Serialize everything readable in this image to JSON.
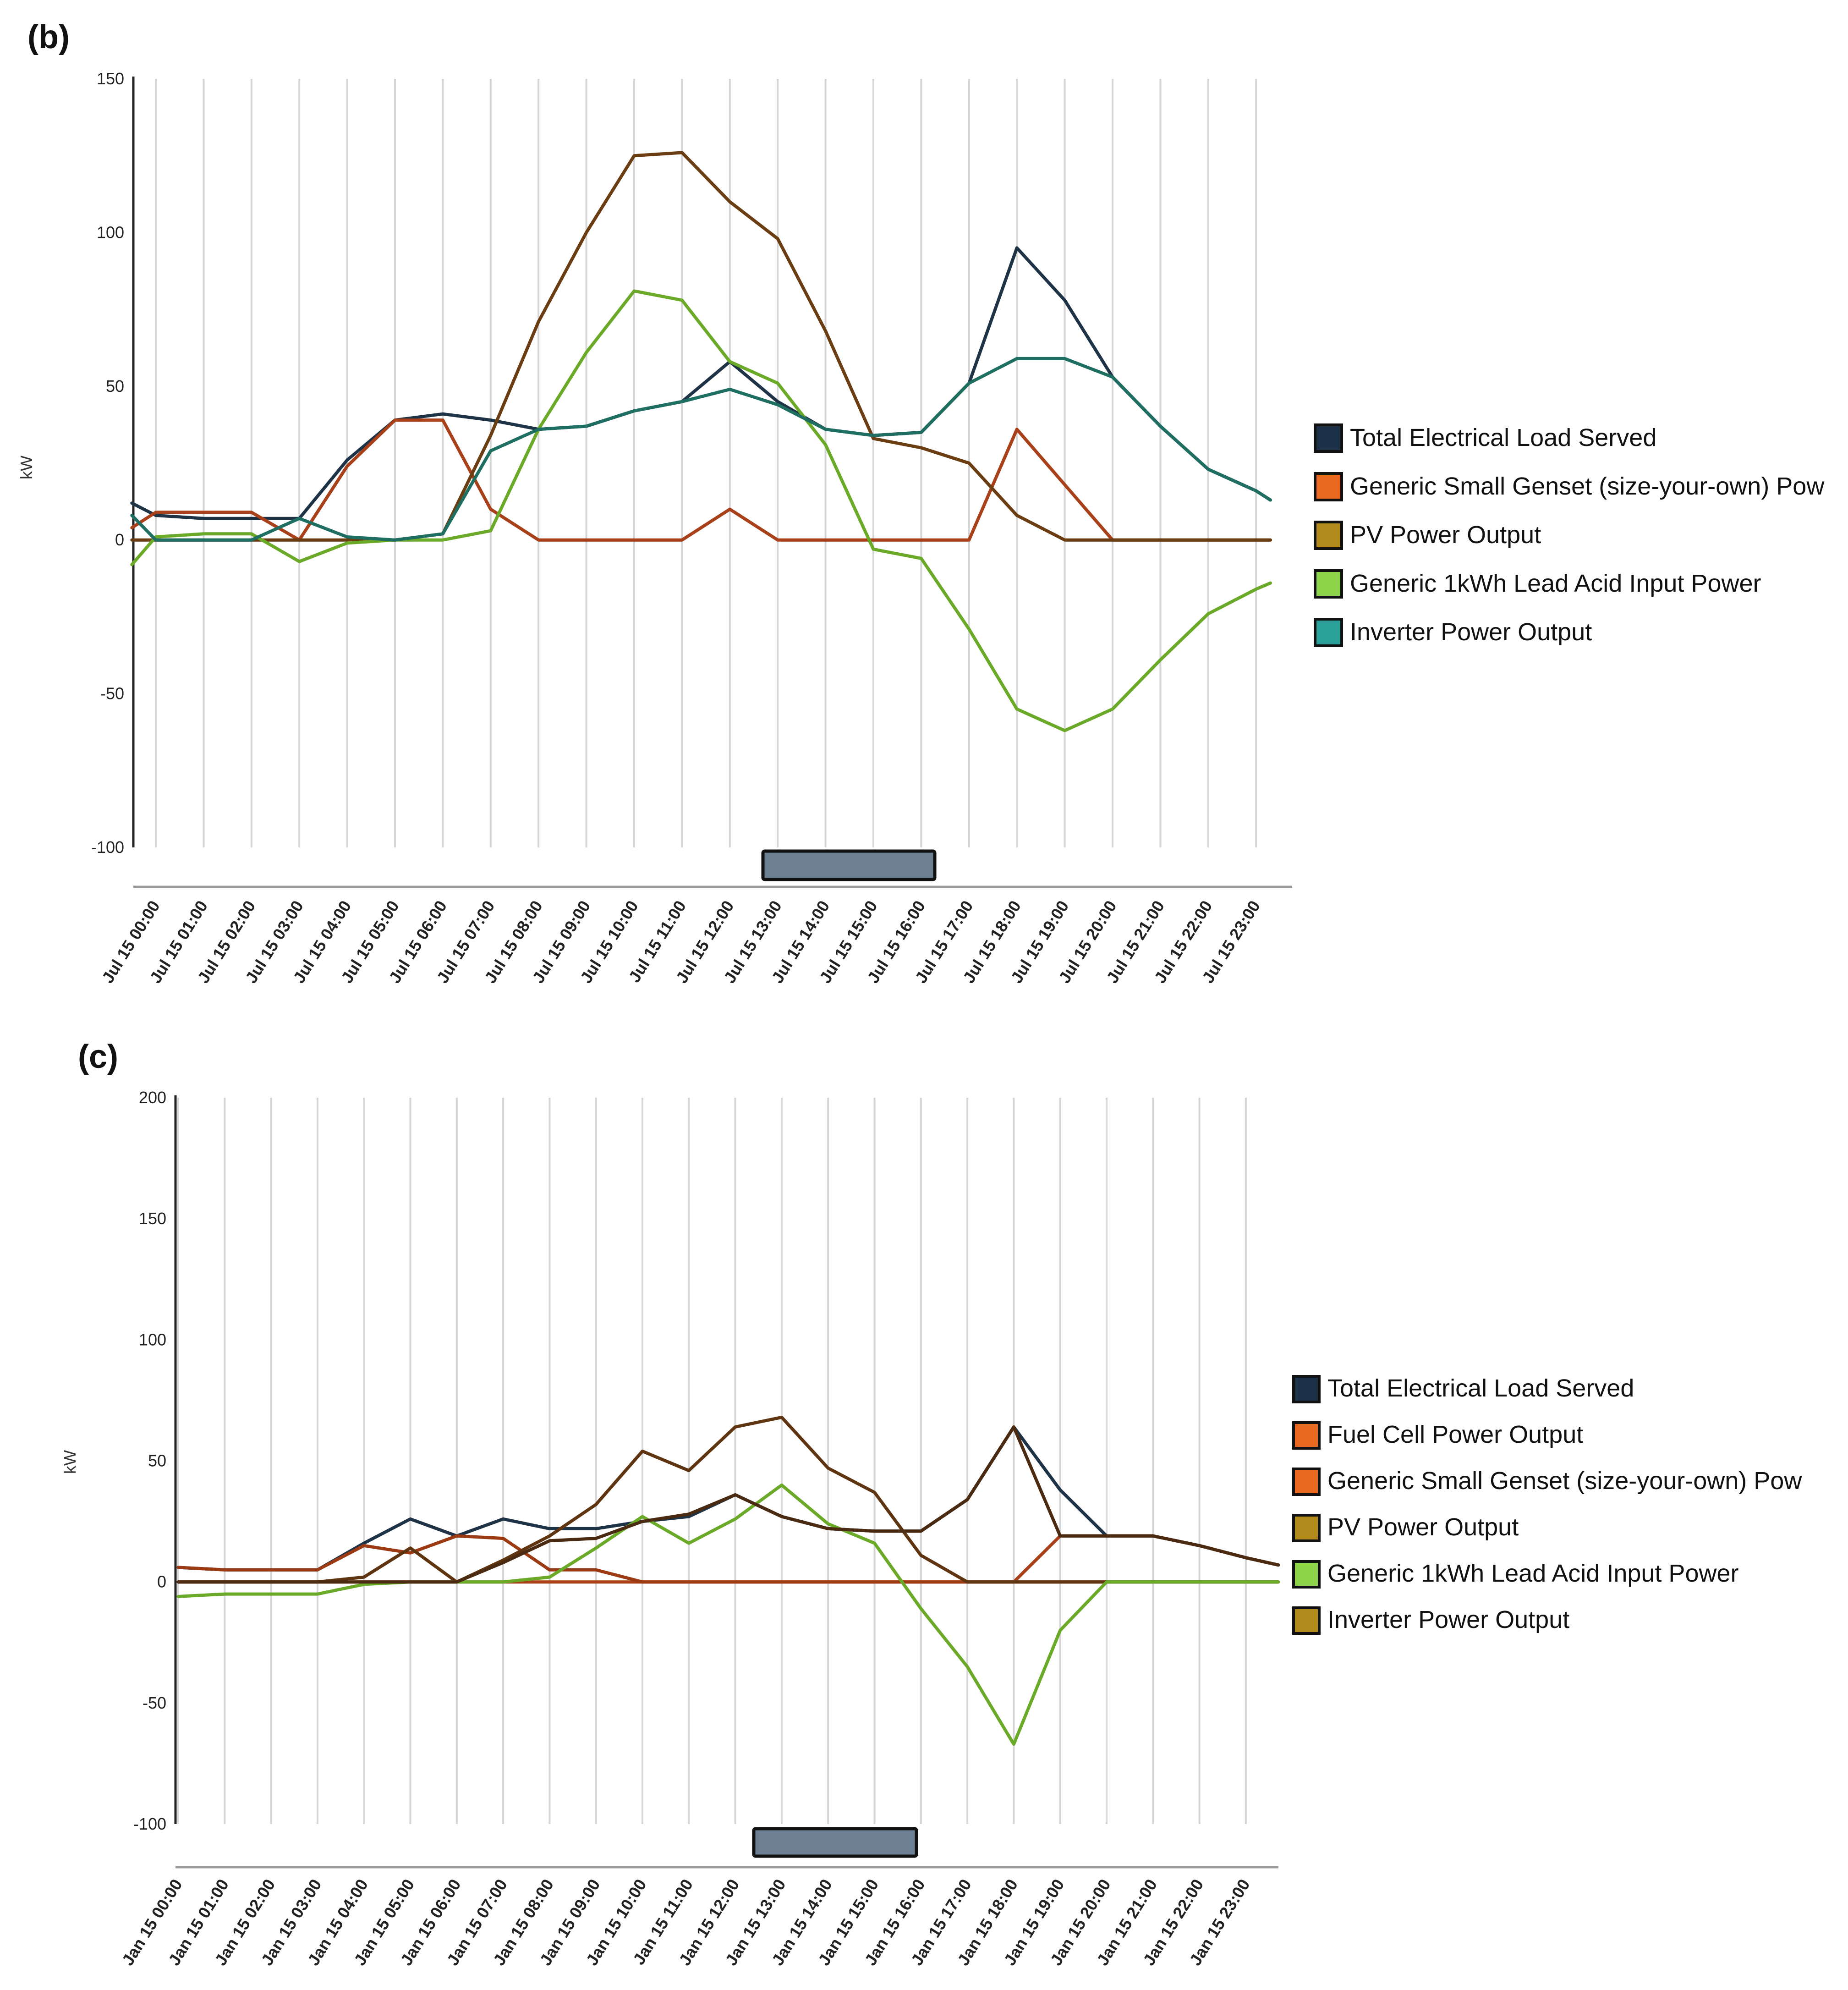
{
  "chart_data": [
    {
      "type": "line",
      "panel_label": "(b)",
      "title": "",
      "xlabel": "",
      "ylabel": "kW",
      "ylim": [
        -100,
        150
      ],
      "yticks": [
        150,
        100,
        50,
        0,
        -50,
        -100
      ],
      "grid": "vertical",
      "legend_position": "right",
      "categories": [
        "Jul 15 00:00",
        "Jul 15 01:00",
        "Jul 15 02:00",
        "Jul 15 03:00",
        "Jul 15 04:00",
        "Jul 15 05:00",
        "Jul 15 06:00",
        "Jul 15 07:00",
        "Jul 15 08:00",
        "Jul 15 09:00",
        "Jul 15 10:00",
        "Jul 15 11:00",
        "Jul 15 12:00",
        "Jul 15 13:00",
        "Jul 15 14:00",
        "Jul 15 15:00",
        "Jul 15 16:00",
        "Jul 15 17:00",
        "Jul 15 18:00",
        "Jul 15 19:00",
        "Jul 15 20:00",
        "Jul 15 21:00",
        "Jul 15 22:00",
        "Jul 15 23:00"
      ],
      "series": [
        {
          "name": "Total Electrical Load Served",
          "color": "#1f3347",
          "swatch": "#1c3048",
          "x": [
            -0.5,
            0,
            1,
            2,
            3,
            4,
            5,
            6,
            7,
            8,
            9,
            10,
            11,
            12,
            13,
            14,
            15,
            16,
            17,
            18,
            19,
            20,
            21,
            22,
            23,
            23.3
          ],
          "values": [
            12,
            8,
            7,
            7,
            7,
            26,
            39,
            41,
            39,
            36,
            37,
            42,
            45,
            58,
            45,
            36,
            34,
            35,
            51,
            95,
            78,
            53,
            37,
            23,
            16,
            13
          ]
        },
        {
          "name": "Generic Small Genset (size-your-own) Pow",
          "color": "#a8401a",
          "swatch": "#e86820",
          "x": [
            -0.5,
            0,
            1,
            2,
            3,
            4,
            5,
            6,
            7,
            8,
            9,
            10,
            11,
            12,
            13,
            14,
            15,
            16,
            17,
            18,
            19,
            20,
            21,
            22,
            23,
            23.3
          ],
          "values": [
            4,
            9,
            9,
            9,
            0,
            24,
            39,
            39,
            10,
            0,
            0,
            0,
            0,
            10,
            0,
            0,
            0,
            0,
            0,
            36,
            18,
            0,
            0,
            0,
            0,
            0
          ]
        },
        {
          "name": "PV Power Output",
          "color": "#6b3d12",
          "swatch": "#b08a1a",
          "x": [
            -0.5,
            0,
            1,
            2,
            3,
            4,
            5,
            6,
            7,
            8,
            9,
            10,
            11,
            12,
            13,
            14,
            15,
            16,
            17,
            18,
            19,
            20,
            21,
            22,
            23,
            23.3
          ],
          "values": [
            0,
            0,
            0,
            0,
            0,
            0,
            0,
            2,
            34,
            71,
            100,
            125,
            126,
            110,
            98,
            68,
            33,
            30,
            25,
            8,
            0,
            0,
            0,
            0,
            0,
            0
          ]
        },
        {
          "name": "Generic 1kWh Lead Acid Input Power",
          "color": "#6aaa28",
          "swatch": "#8dd44a",
          "x": [
            -0.5,
            0,
            1,
            2,
            3,
            4,
            5,
            6,
            7,
            8,
            9,
            10,
            11,
            12,
            13,
            14,
            15,
            16,
            17,
            18,
            19,
            20,
            21,
            22,
            23,
            23.3
          ],
          "values": [
            -8,
            1,
            2,
            2,
            -7,
            -1,
            0,
            0,
            3,
            36,
            61,
            81,
            78,
            58,
            51,
            31,
            -3,
            -6,
            -29,
            -55,
            -62,
            -55,
            -39,
            -24,
            -16,
            -14
          ]
        },
        {
          "name": "Inverter Power Output",
          "color": "#1e6e62",
          "swatch": "#2aa198",
          "x": [
            -0.5,
            0,
            1,
            2,
            3,
            4,
            5,
            6,
            7,
            8,
            9,
            10,
            11,
            12,
            13,
            14,
            15,
            16,
            17,
            18,
            19,
            20,
            21,
            22,
            23,
            23.3
          ],
          "values": [
            8,
            0,
            0,
            0,
            7,
            1,
            0,
            2,
            29,
            36,
            37,
            42,
            45,
            49,
            44,
            36,
            34,
            35,
            51,
            59,
            59,
            53,
            37,
            23,
            16,
            13
          ]
        }
      ]
    },
    {
      "type": "line",
      "panel_label": "(c)",
      "title": "",
      "xlabel": "",
      "ylabel": "kW",
      "ylim": [
        -100,
        200
      ],
      "yticks": [
        200,
        150,
        100,
        50,
        0,
        -50,
        -100
      ],
      "grid": "vertical",
      "legend_position": "right",
      "categories": [
        "Jan 15 00:00",
        "Jan 15 01:00",
        "Jan 15 02:00",
        "Jan 15 03:00",
        "Jan 15 04:00",
        "Jan 15 05:00",
        "Jan 15 06:00",
        "Jan 15 07:00",
        "Jan 15 08:00",
        "Jan 15 09:00",
        "Jan 15 10:00",
        "Jan 15 11:00",
        "Jan 15 12:00",
        "Jan 15 13:00",
        "Jan 15 14:00",
        "Jan 15 15:00",
        "Jan 15 16:00",
        "Jan 15 17:00",
        "Jan 15 18:00",
        "Jan 15 19:00",
        "Jan 15 20:00",
        "Jan 15 21:00",
        "Jan 15 22:00",
        "Jan 15 23:00"
      ],
      "series": [
        {
          "name": "Total Electrical Load Served",
          "color": "#1f3347",
          "swatch": "#1c3048",
          "x": [
            0,
            1,
            2,
            3,
            4,
            5,
            6,
            7,
            8,
            9,
            10,
            11,
            12,
            13,
            14,
            15,
            16,
            17,
            18,
            19,
            20,
            21,
            22,
            23,
            23.7
          ],
          "values": [
            6,
            5,
            5,
            5,
            16,
            26,
            19,
            26,
            22,
            22,
            25,
            27,
            36,
            27,
            22,
            21,
            21,
            34,
            64,
            38,
            19,
            19,
            15,
            10,
            7
          ]
        },
        {
          "name": "Fuel Cell Power Output",
          "color": "#a8401a",
          "swatch": "#e86820",
          "x": [
            0,
            1,
            2,
            3,
            4,
            5,
            6,
            7,
            8,
            9,
            10,
            11,
            12,
            13,
            14,
            15,
            16,
            17,
            18,
            19,
            20,
            21,
            22,
            23,
            23.7
          ],
          "values": [
            0,
            0,
            0,
            0,
            0,
            0,
            0,
            0,
            0,
            0,
            0,
            0,
            0,
            0,
            0,
            0,
            0,
            0,
            0,
            19,
            19,
            19,
            15,
            10,
            7
          ]
        },
        {
          "name": "Generic Small Genset (size-your-own) Pow",
          "color": "#9c3a14",
          "swatch": "#e86820",
          "x": [
            0,
            1,
            2,
            3,
            4,
            5,
            6,
            7,
            8,
            9,
            10,
            11,
            12,
            13,
            14,
            15,
            16,
            17,
            18,
            19,
            20,
            21,
            22,
            23,
            23.7
          ],
          "values": [
            6,
            5,
            5,
            5,
            15,
            12,
            19,
            18,
            5,
            5,
            0,
            0,
            0,
            0,
            0,
            0,
            0,
            0,
            0,
            0,
            0,
            0,
            0,
            0,
            0
          ]
        },
        {
          "name": "PV Power Output",
          "color": "#5e3510",
          "swatch": "#b08a1a",
          "x": [
            0,
            1,
            2,
            3,
            4,
            5,
            6,
            7,
            8,
            9,
            10,
            11,
            12,
            13,
            14,
            15,
            16,
            17,
            18,
            19,
            20,
            21,
            22,
            23,
            23.7
          ],
          "values": [
            0,
            0,
            0,
            0,
            2,
            14,
            0,
            9,
            19,
            32,
            54,
            46,
            64,
            68,
            47,
            37,
            11,
            0,
            0,
            0,
            0,
            0,
            0,
            0,
            0
          ]
        },
        {
          "name": "Generic 1kWh Lead Acid Input Power",
          "color": "#6aaa28",
          "swatch": "#8dd44a",
          "x": [
            0,
            1,
            2,
            3,
            4,
            5,
            6,
            7,
            8,
            9,
            10,
            11,
            12,
            13,
            14,
            15,
            16,
            17,
            18,
            19,
            20,
            21,
            22,
            23,
            23.7
          ],
          "values": [
            -6,
            -5,
            -5,
            -5,
            -1,
            0,
            0,
            0,
            2,
            14,
            27,
            16,
            26,
            40,
            24,
            16,
            -11,
            -35,
            -67,
            -20,
            0,
            0,
            0,
            0,
            0
          ]
        },
        {
          "name": "Inverter Power Output",
          "color": "#4a2a10",
          "swatch": "#b08a1a",
          "x": [
            0,
            1,
            2,
            3,
            4,
            5,
            6,
            7,
            8,
            9,
            10,
            11,
            12,
            13,
            14,
            15,
            16,
            17,
            18,
            19,
            20,
            21,
            22,
            23,
            23.7
          ],
          "values": [
            0,
            0,
            0,
            0,
            0,
            0,
            0,
            8,
            17,
            18,
            25,
            28,
            36,
            27,
            22,
            21,
            21,
            34,
            64,
            19,
            19,
            19,
            15,
            10,
            7
          ]
        }
      ]
    }
  ]
}
